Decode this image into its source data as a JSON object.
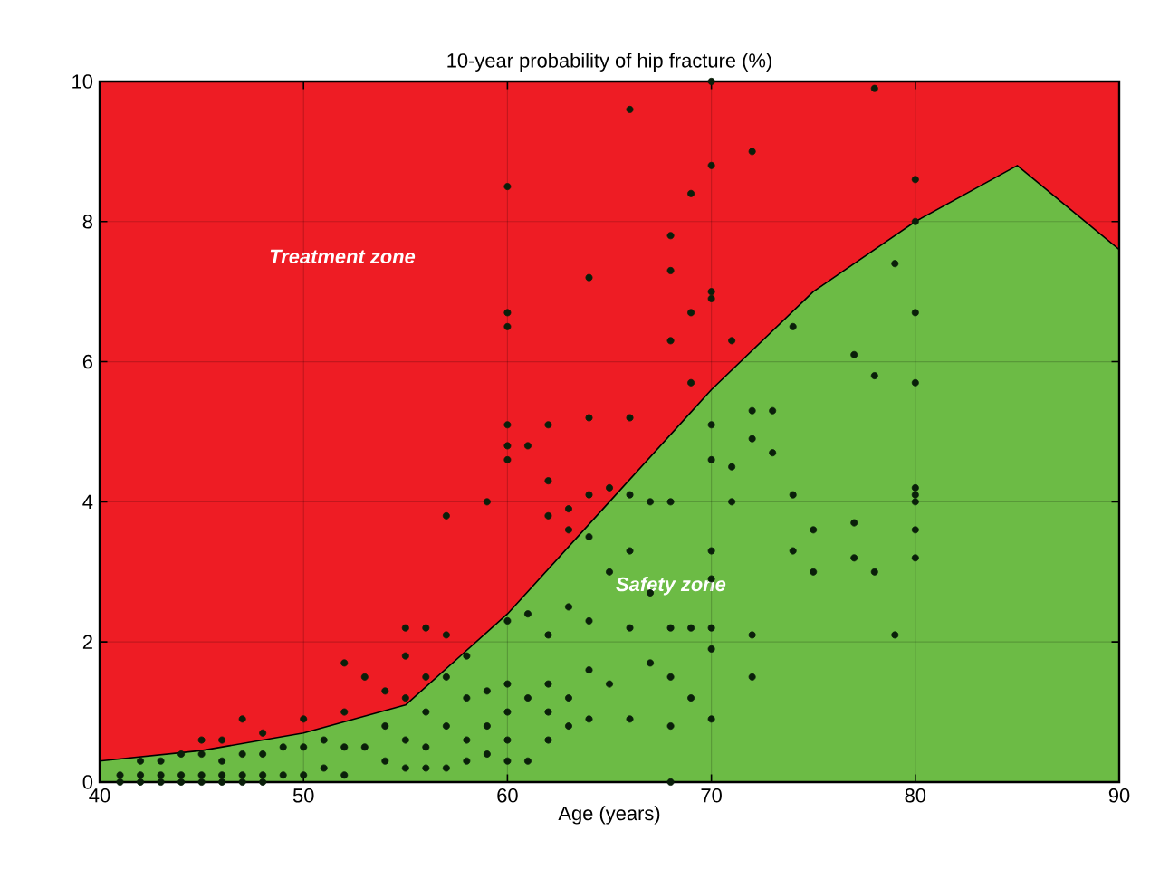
{
  "chart_data": {
    "type": "scatter",
    "title": "10-year probability of hip fracture (%)",
    "xlabel": "Age (years)",
    "annotations": [
      "Treatment zone",
      "Safety zone"
    ],
    "xlim": [
      40,
      90
    ],
    "ylim": [
      0,
      10
    ],
    "xticks": [
      40,
      50,
      60,
      70,
      80,
      90
    ],
    "yticks": [
      0,
      2,
      4,
      6,
      8,
      10
    ],
    "grid": true,
    "bands": [
      {
        "axis": "y",
        "from": 0,
        "to": 10,
        "color": "#ee1c24"
      }
    ],
    "series": [
      {
        "type": "area",
        "color": "#6cbb45",
        "x": [
          40,
          45,
          50,
          55,
          60,
          65,
          70,
          75,
          80,
          85,
          90
        ],
        "values": [
          0.3,
          0.45,
          0.7,
          1.1,
          2.4,
          4.0,
          5.6,
          7.0,
          8.0,
          8.8,
          7.6
        ]
      },
      {
        "color": "#0a1f0a",
        "marker": "circle",
        "x": [
          60,
          60,
          60,
          60,
          60,
          66,
          64,
          70,
          70,
          69,
          68,
          68,
          69,
          70,
          70,
          68,
          69,
          71,
          72,
          78,
          80,
          80,
          77,
          79,
          78,
          80,
          80,
          74,
          73,
          72,
          72,
          61,
          62,
          64,
          66,
          62,
          63,
          64,
          65,
          62,
          64,
          63,
          60,
          73,
          74,
          75,
          77,
          80,
          80,
          80,
          80,
          74,
          75,
          77,
          78,
          79,
          80,
          72,
          72,
          70,
          70,
          71,
          70,
          70,
          71,
          66,
          65,
          64,
          66,
          67,
          68,
          67,
          68,
          69,
          70,
          70,
          69,
          70,
          68,
          66,
          64,
          64,
          65,
          63,
          63,
          62,
          62,
          62,
          62,
          61,
          61,
          60,
          60,
          60,
          60,
          59,
          59,
          59,
          58,
          58,
          58,
          57,
          57,
          57,
          56,
          56,
          56,
          55,
          55,
          55,
          55,
          54,
          54,
          54,
          53,
          53,
          52,
          52,
          52,
          52,
          51,
          51,
          50,
          50,
          50,
          49,
          49,
          48,
          48,
          48,
          47,
          47,
          47,
          46,
          46,
          46,
          45,
          45,
          45,
          44,
          44,
          43,
          43,
          42,
          42,
          41,
          55,
          56,
          57,
          57,
          59,
          58,
          56,
          60,
          61,
          63,
          66,
          67,
          68,
          41,
          42,
          43,
          44,
          45,
          46,
          47,
          48,
          68
        ],
        "values": [
          8.5,
          6.7,
          6.5,
          5.1,
          4.8,
          9.6,
          7.2,
          10,
          8.8,
          8.4,
          7.8,
          7.3,
          6.7,
          7.0,
          6.9,
          6.3,
          5.7,
          6.3,
          9.0,
          9.9,
          8.6,
          8.0,
          6.1,
          7.4,
          5.8,
          5.7,
          6.7,
          6.5,
          5.3,
          5.3,
          4.9,
          4.8,
          5.1,
          5.2,
          5.2,
          4.3,
          3.9,
          4.1,
          4.2,
          3.8,
          3.5,
          3.6,
          4.6,
          4.7,
          4.1,
          3.6,
          3.7,
          4.2,
          4.1,
          4.0,
          3.6,
          3.3,
          3.0,
          3.2,
          3.0,
          2.1,
          3.2,
          2.1,
          1.5,
          3.3,
          2.9,
          4.5,
          4.6,
          5.1,
          4.0,
          3.3,
          3.0,
          2.3,
          2.2,
          2.7,
          2.2,
          1.7,
          1.5,
          2.2,
          2.2,
          1.9,
          1.2,
          0.9,
          0.8,
          0.9,
          1.6,
          0.9,
          1.4,
          1.2,
          0.8,
          2.1,
          1.4,
          1.0,
          0.6,
          1.2,
          0.3,
          1.4,
          1.0,
          0.6,
          0.3,
          1.3,
          0.8,
          0.4,
          1.2,
          0.6,
          0.3,
          1.5,
          0.8,
          0.2,
          1.0,
          0.5,
          0.2,
          1.8,
          1.2,
          0.6,
          0.2,
          1.3,
          0.8,
          0.3,
          1.5,
          0.5,
          1.7,
          1.0,
          0.5,
          0.1,
          0.6,
          0.2,
          0.9,
          0.5,
          0.1,
          0.5,
          0.1,
          0.7,
          0.4,
          0.1,
          0.9,
          0.4,
          0.1,
          0.6,
          0.3,
          0.1,
          0.6,
          0.4,
          0.1,
          0.4,
          0.1,
          0.3,
          0.1,
          0.3,
          0.1,
          0.1,
          2.2,
          2.2,
          2.1,
          3.8,
          4.0,
          1.8,
          1.5,
          2.3,
          2.4,
          2.5,
          4.1,
          4.0,
          4.0,
          0,
          0,
          0,
          0,
          0,
          0,
          0,
          0,
          0
        ]
      }
    ]
  }
}
